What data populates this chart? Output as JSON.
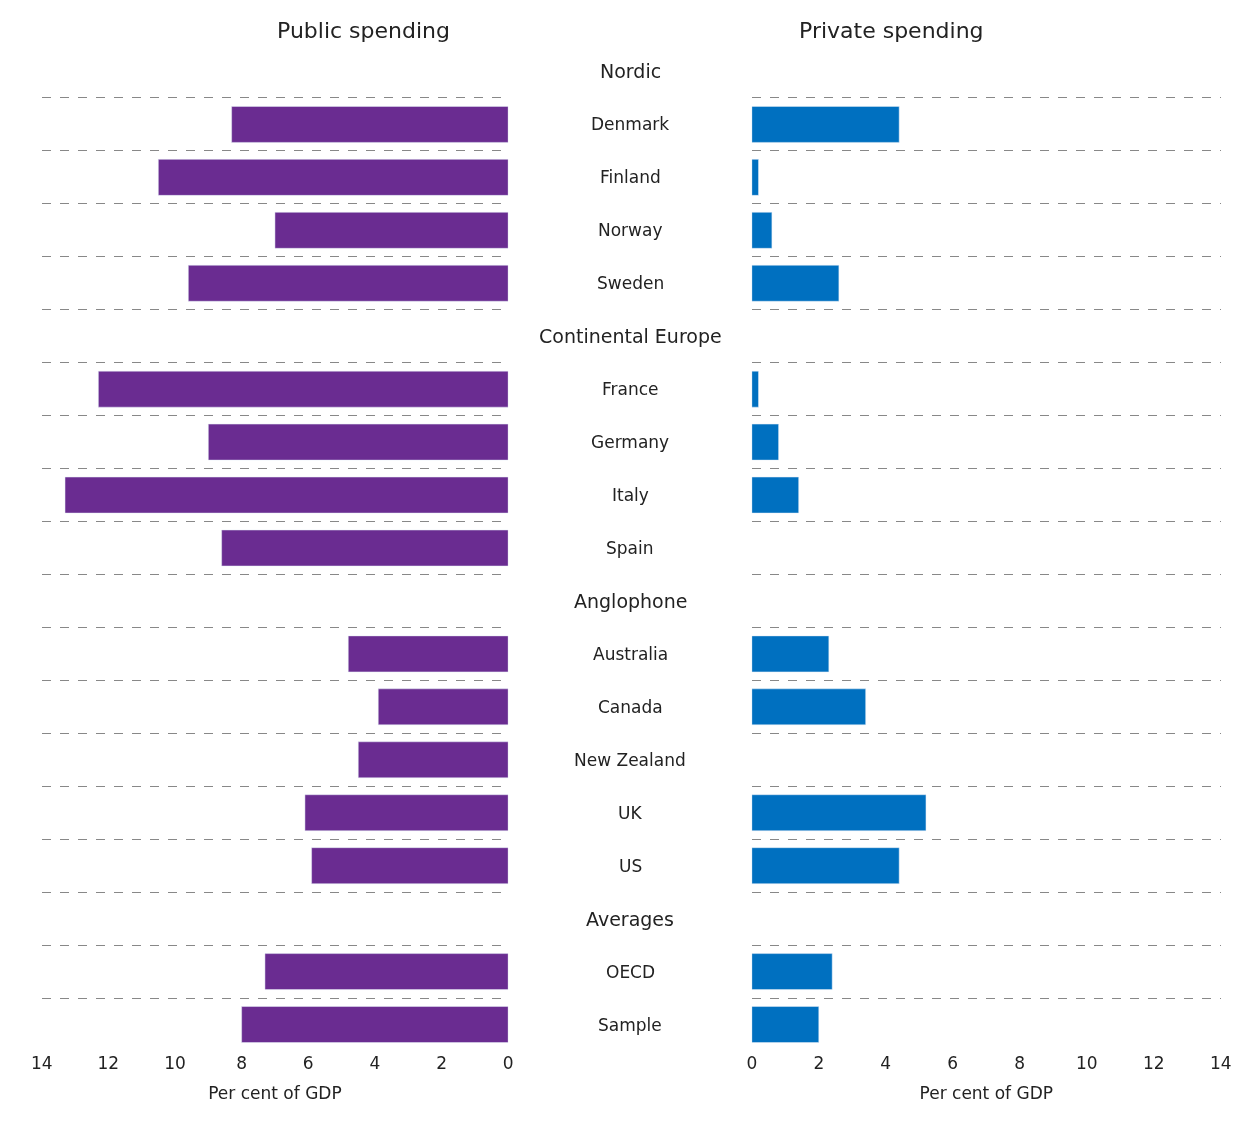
{
  "chart_data": [
    {
      "type": "bar",
      "orientation": "horizontal",
      "title": "Public spending",
      "xlabel": "Per cent of GDP",
      "categories": [
        "Nordic",
        "Denmark",
        "Finland",
        "Norway",
        "Sweden",
        "Continental Europe",
        "France",
        "Germany",
        "Italy",
        "Spain",
        "Anglophone",
        "Australia",
        "Canada",
        "New Zealand",
        "UK",
        "US",
        "Averages",
        "OECD",
        "Sample"
      ],
      "values": [
        null,
        8.3,
        10.5,
        7.0,
        9.6,
        null,
        12.3,
        9.0,
        13.3,
        8.6,
        null,
        4.8,
        3.9,
        4.5,
        6.1,
        5.9,
        null,
        7.3,
        8.0
      ],
      "color": "#6a2c91",
      "xlim": [
        14,
        0
      ],
      "xticks": [
        0,
        2,
        4,
        6,
        8,
        10,
        12,
        14
      ],
      "grid": "y",
      "legend": false
    },
    {
      "type": "bar",
      "orientation": "horizontal",
      "title": "Private spending",
      "xlabel": "Per cent of GDP",
      "categories": [
        "Nordic",
        "Denmark",
        "Finland",
        "Norway",
        "Sweden",
        "Continental Europe",
        "France",
        "Germany",
        "Italy",
        "Spain",
        "Anglophone",
        "Australia",
        "Canada",
        "New Zealand",
        "UK",
        "US",
        "Averages",
        "OECD",
        "Sample"
      ],
      "values": [
        null,
        4.4,
        0.2,
        0.6,
        2.6,
        null,
        0.2,
        0.8,
        1.4,
        null,
        null,
        2.3,
        3.4,
        null,
        5.2,
        4.4,
        null,
        2.4,
        2.0
      ],
      "color": "#0070c0",
      "xlim": [
        0,
        14
      ],
      "xticks": [
        0,
        2,
        4,
        6,
        8,
        10,
        12,
        14
      ],
      "grid": "y",
      "legend": false,
      "tick_labels": "x"
    }
  ]
}
